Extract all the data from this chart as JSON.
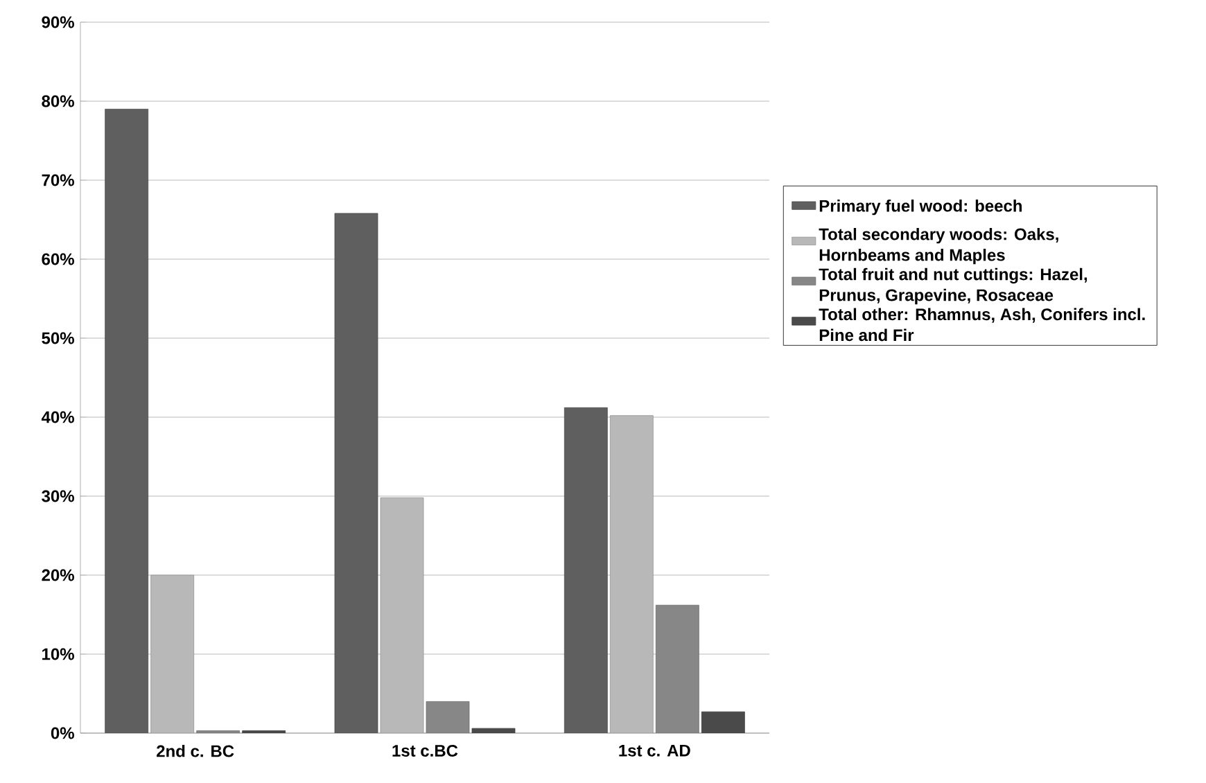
{
  "chart_data": {
    "type": "bar",
    "categories": [
      "2nd c. BC",
      "1st c.BC",
      "1st c. AD"
    ],
    "series": [
      {
        "name": "Primary fuel wood: beech",
        "color": "#5f5f5f",
        "values": [
          79,
          65.8,
          41.2
        ]
      },
      {
        "name": "Total secondary woods: Oaks, Hornbeams and Maples",
        "color": "#b8b8b8",
        "values": [
          20,
          29.8,
          40.2
        ]
      },
      {
        "name": "Total fruit and nut cuttings: Hazel, Prunus, Grapevine, Rosaceae",
        "color": "#878787",
        "values": [
          0.3,
          4,
          16.2
        ]
      },
      {
        "name": "Total other: Rhamnus, Ash, Conifers incl. Pine and Fir",
        "color": "#4a4a4a",
        "values": [
          0.3,
          0.6,
          2.7
        ]
      }
    ],
    "ylim": [
      0,
      90
    ],
    "yticks": [
      {
        "value": 0,
        "label": "0%"
      },
      {
        "value": 10,
        "label": "10%"
      },
      {
        "value": 20,
        "label": "20%"
      },
      {
        "value": 30,
        "label": "30%"
      },
      {
        "value": 40,
        "label": "40%"
      },
      {
        "value": 50,
        "label": "50%"
      },
      {
        "value": 60,
        "label": "60%"
      },
      {
        "value": 70,
        "label": "70%"
      },
      {
        "value": 80,
        "label": "80%"
      },
      {
        "value": 90,
        "label": "90%"
      }
    ],
    "grid": "y",
    "legend": "right"
  }
}
